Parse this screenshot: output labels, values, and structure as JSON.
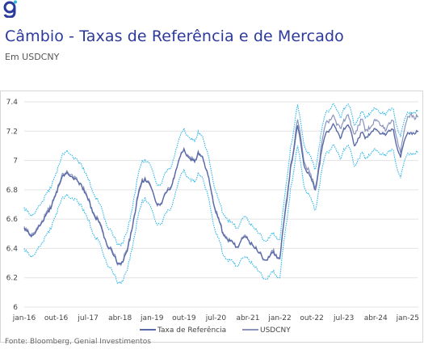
{
  "brand": {
    "primary_color": "#2b3a9b",
    "accent_color": "#2cb5e8",
    "logo_icon": "genial-logo-icon"
  },
  "header": {
    "title": "Câmbio - Taxas de Referência e de Mercado",
    "subtitle": "Em USDCNY"
  },
  "footer": {
    "source": "Fonte: Bloomberg, Genial Investimentos"
  },
  "chart_data": {
    "type": "line",
    "title": "",
    "xlabel": "",
    "ylabel": "",
    "ylim": [
      6,
      7.4
    ],
    "yticks": [
      "6",
      "6.2",
      "6.4",
      "6.6",
      "6.8",
      "7",
      "7.2",
      "7.4"
    ],
    "xlim": [
      0,
      111
    ],
    "x_ticks": [
      {
        "pos": 0,
        "label": "jan-16"
      },
      {
        "pos": 9,
        "label": "out-16"
      },
      {
        "pos": 18,
        "label": "jul-17"
      },
      {
        "pos": 27,
        "label": "abr-18"
      },
      {
        "pos": 36,
        "label": "jan-19"
      },
      {
        "pos": 45,
        "label": "out-19"
      },
      {
        "pos": 54,
        "label": "jul-20"
      },
      {
        "pos": 63,
        "label": "abr-21"
      },
      {
        "pos": 72,
        "label": "jan-22"
      },
      {
        "pos": 81,
        "label": "out-22"
      },
      {
        "pos": 90,
        "label": "jul-23"
      },
      {
        "pos": 99,
        "label": "abr-24"
      },
      {
        "pos": 108,
        "label": "jan-25"
      }
    ],
    "legend_position": "bottom",
    "grid": "horizontal",
    "series": [
      {
        "name": "Taxa de Referência",
        "color": "#5a6aa8",
        "x": [
          0,
          1,
          2,
          3,
          4,
          5,
          6,
          7,
          8,
          9,
          10,
          11,
          12,
          13,
          14,
          15,
          16,
          17,
          18,
          19,
          20,
          21,
          22,
          23,
          24,
          25,
          26,
          27,
          28,
          29,
          30,
          31,
          32,
          33,
          34,
          35,
          36,
          37,
          38,
          39,
          40,
          41,
          42,
          43,
          44,
          45,
          46,
          47,
          48,
          49,
          50,
          51,
          52,
          53,
          54,
          55,
          56,
          57,
          58,
          59,
          60,
          61,
          62,
          63,
          64,
          65,
          66,
          67,
          68,
          69,
          70,
          71,
          72,
          73,
          74,
          75,
          76,
          77,
          78,
          79,
          80,
          81,
          82,
          83,
          84,
          85,
          86,
          87,
          88,
          89,
          90,
          91,
          92,
          93,
          94,
          95,
          96,
          97,
          98,
          99,
          100,
          101,
          102,
          103,
          104,
          105,
          106,
          107,
          108,
          109,
          110,
          111
        ],
        "values": [
          6.54,
          6.52,
          6.48,
          6.5,
          6.55,
          6.58,
          6.62,
          6.65,
          6.72,
          6.78,
          6.84,
          6.9,
          6.92,
          6.89,
          6.87,
          6.86,
          6.84,
          6.78,
          6.73,
          6.67,
          6.61,
          6.58,
          6.52,
          6.45,
          6.4,
          6.36,
          6.31,
          6.3,
          6.32,
          6.38,
          6.5,
          6.62,
          6.75,
          6.84,
          6.88,
          6.85,
          6.8,
          6.72,
          6.7,
          6.73,
          6.78,
          6.8,
          6.87,
          6.95,
          7.03,
          7.08,
          7.03,
          7.0,
          6.99,
          7.06,
          7.03,
          6.95,
          6.88,
          6.75,
          6.64,
          6.58,
          6.5,
          6.47,
          6.45,
          6.43,
          6.41,
          6.45,
          6.48,
          6.46,
          6.44,
          6.4,
          6.37,
          6.34,
          6.32,
          6.34,
          6.37,
          6.35,
          6.33,
          6.55,
          6.73,
          6.95,
          7.08,
          7.24,
          7.1,
          6.95,
          6.92,
          6.86,
          6.8,
          6.95,
          7.1,
          7.19,
          7.21,
          7.25,
          7.2,
          7.15,
          7.22,
          7.24,
          7.2,
          7.1,
          7.15,
          7.19,
          7.15,
          7.18,
          7.2,
          7.21,
          7.19,
          7.19,
          7.18,
          7.2,
          7.21,
          7.09,
          7.02,
          7.13,
          7.19,
          7.19,
          7.18,
          7.2
        ]
      },
      {
        "name": "USDCNY",
        "color": "#8a94bd",
        "x": [
          0,
          1,
          2,
          3,
          4,
          5,
          6,
          7,
          8,
          9,
          10,
          11,
          12,
          13,
          14,
          15,
          16,
          17,
          18,
          19,
          20,
          21,
          22,
          23,
          24,
          25,
          26,
          27,
          28,
          29,
          30,
          31,
          32,
          33,
          34,
          35,
          36,
          37,
          38,
          39,
          40,
          41,
          42,
          43,
          44,
          45,
          46,
          47,
          48,
          49,
          50,
          51,
          52,
          53,
          54,
          55,
          56,
          57,
          58,
          59,
          60,
          61,
          62,
          63,
          64,
          65,
          66,
          67,
          68,
          69,
          70,
          71,
          72,
          73,
          74,
          75,
          76,
          77,
          78,
          79,
          80,
          81,
          82,
          83,
          84,
          85,
          86,
          87,
          88,
          89,
          90,
          91,
          92,
          93,
          94,
          95,
          96,
          97,
          98,
          99,
          100,
          101,
          102,
          103,
          104,
          105,
          106,
          107,
          108,
          109,
          110,
          111
        ],
        "values": [
          6.55,
          6.53,
          6.49,
          6.51,
          6.56,
          6.59,
          6.63,
          6.66,
          6.73,
          6.79,
          6.85,
          6.91,
          6.93,
          6.9,
          6.88,
          6.86,
          6.84,
          6.79,
          6.73,
          6.68,
          6.62,
          6.58,
          6.53,
          6.45,
          6.4,
          6.37,
          6.31,
          6.3,
          6.33,
          6.39,
          6.51,
          6.63,
          6.76,
          6.85,
          6.88,
          6.86,
          6.8,
          6.72,
          6.7,
          6.73,
          6.78,
          6.81,
          6.88,
          6.95,
          7.03,
          7.08,
          7.04,
          7.01,
          6.99,
          7.06,
          7.03,
          6.95,
          6.88,
          6.76,
          6.65,
          6.58,
          6.51,
          6.48,
          6.45,
          6.43,
          6.41,
          6.45,
          6.49,
          6.46,
          6.44,
          6.4,
          6.37,
          6.34,
          6.32,
          6.34,
          6.38,
          6.36,
          6.34,
          6.56,
          6.75,
          6.97,
          7.1,
          7.28,
          7.14,
          6.98,
          6.95,
          6.87,
          6.82,
          6.98,
          7.15,
          7.26,
          7.28,
          7.31,
          7.24,
          7.22,
          7.28,
          7.31,
          7.24,
          7.18,
          7.24,
          7.28,
          7.2,
          7.23,
          7.24,
          7.27,
          7.26,
          7.24,
          7.21,
          7.25,
          7.27,
          7.15,
          7.05,
          7.2,
          7.3,
          7.32,
          7.28,
          7.3
        ]
      }
    ],
    "bands": {
      "name": "Banda",
      "color": "#2cb5e8",
      "upper": [
        6.68,
        6.66,
        6.62,
        6.64,
        6.69,
        6.72,
        6.76,
        6.79,
        6.86,
        6.92,
        6.98,
        7.05,
        7.07,
        7.04,
        7.01,
        7.0,
        6.98,
        6.92,
        6.87,
        6.81,
        6.75,
        6.71,
        6.66,
        6.58,
        6.53,
        6.49,
        6.44,
        6.43,
        6.45,
        6.51,
        6.63,
        6.76,
        6.89,
        6.98,
        7.01,
        6.99,
        6.94,
        6.86,
        6.83,
        6.87,
        6.92,
        6.94,
        7.01,
        7.09,
        7.17,
        7.22,
        7.17,
        7.14,
        7.13,
        7.2,
        7.17,
        7.09,
        7.02,
        6.89,
        6.78,
        6.71,
        6.64,
        6.61,
        6.58,
        6.56,
        6.54,
        6.58,
        6.62,
        6.59,
        6.57,
        6.53,
        6.5,
        6.47,
        6.45,
        6.47,
        6.5,
        6.48,
        6.46,
        6.68,
        6.87,
        7.09,
        7.22,
        7.38,
        7.24,
        7.09,
        7.06,
        7.0,
        6.94,
        7.09,
        7.24,
        7.33,
        7.35,
        7.39,
        7.34,
        7.29,
        7.36,
        7.38,
        7.34,
        7.24,
        7.29,
        7.33,
        7.29,
        7.32,
        7.34,
        7.35,
        7.33,
        7.33,
        7.32,
        7.34,
        7.35,
        7.23,
        7.16,
        7.27,
        7.33,
        7.33,
        7.32,
        7.34
      ],
      "lower": [
        6.4,
        6.38,
        6.34,
        6.36,
        6.41,
        6.44,
        6.48,
        6.51,
        6.58,
        6.64,
        6.7,
        6.75,
        6.77,
        6.74,
        6.73,
        6.72,
        6.7,
        6.64,
        6.59,
        6.53,
        6.47,
        6.45,
        6.38,
        6.32,
        6.27,
        6.23,
        6.18,
        6.17,
        6.19,
        6.25,
        6.37,
        6.48,
        6.61,
        6.7,
        6.75,
        6.71,
        6.66,
        6.58,
        6.57,
        6.59,
        6.64,
        6.66,
        6.73,
        6.81,
        6.89,
        6.94,
        6.89,
        6.86,
        6.85,
        6.92,
        6.89,
        6.81,
        6.74,
        6.61,
        6.5,
        6.45,
        6.36,
        6.33,
        6.32,
        6.3,
        6.28,
        6.32,
        6.34,
        6.33,
        6.31,
        6.27,
        6.24,
        6.21,
        6.19,
        6.21,
        6.24,
        6.22,
        6.2,
        6.42,
        6.59,
        6.81,
        6.94,
        7.1,
        6.96,
        6.81,
        6.78,
        6.72,
        6.66,
        6.81,
        6.96,
        7.05,
        7.07,
        7.11,
        7.06,
        7.01,
        7.08,
        7.1,
        7.06,
        6.96,
        7.01,
        7.05,
        7.01,
        7.04,
        7.06,
        7.07,
        7.05,
        7.05,
        7.04,
        7.06,
        7.07,
        6.95,
        6.88,
        6.99,
        7.05,
        7.05,
        7.04,
        7.06
      ]
    }
  }
}
